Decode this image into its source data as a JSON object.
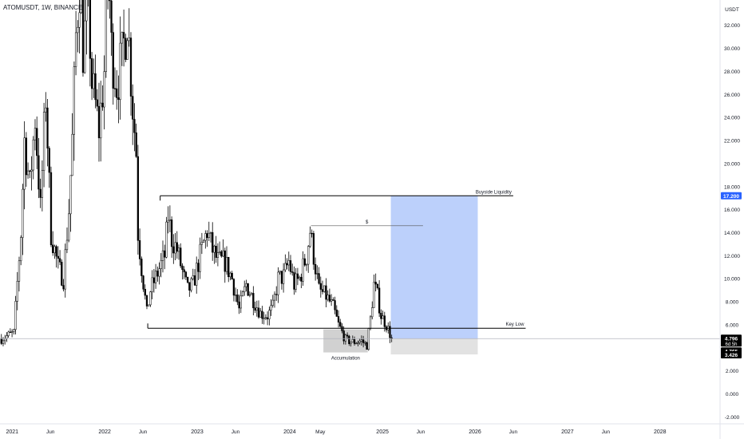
{
  "header": {
    "title": "ATOMUSDT, 1W, BINANCE",
    "currency": "USDT"
  },
  "colors": {
    "candle": "#000000",
    "background": "#ffffff",
    "axis_text": "#131722",
    "target_zone": "#bcd0fb",
    "stop_zone": "#e2e2e2",
    "accumulation_box": "#c6c6c6",
    "price_label": "#000000",
    "highlight_label": "#2962ff",
    "level_line": "#000000",
    "current_price_line": "#b2b5be"
  },
  "chart_data": {
    "type": "candlestick",
    "title": "ATOMUSDT, 1W, BINANCE",
    "ylabel": "USDT",
    "ylim": [
      -2.6,
      34.2
    ],
    "y_ticks": [
      32,
      30,
      28,
      26,
      24,
      22,
      20,
      18,
      16,
      14,
      12,
      10,
      8,
      6,
      2,
      0,
      -2
    ],
    "y_tick_labels": [
      "32.000",
      "30.000",
      "28.000",
      "26.000",
      "24.000",
      "22.000",
      "20.000",
      "18.000",
      "16.000",
      "14.000",
      "12.000",
      "10.000",
      "8.000",
      "6.000",
      "2.000",
      "0.000",
      "-2.000"
    ],
    "xlim": [
      "2020-11-14",
      "2028-08-25"
    ],
    "x_ticks": [
      {
        "date": "2021-01-01",
        "label": "2021"
      },
      {
        "date": "2021-06-01",
        "label": "Jun"
      },
      {
        "date": "2022-01-01",
        "label": "2022"
      },
      {
        "date": "2022-06-01",
        "label": "Jun"
      },
      {
        "date": "2023-01-01",
        "label": "2023"
      },
      {
        "date": "2023-06-01",
        "label": "Jun"
      },
      {
        "date": "2024-01-01",
        "label": "2024"
      },
      {
        "date": "2024-05-01",
        "label": "May"
      },
      {
        "date": "2025-01-01",
        "label": "2025"
      },
      {
        "date": "2025-06-01",
        "label": "Jun"
      },
      {
        "date": "2026-01-01",
        "label": "2026"
      },
      {
        "date": "2026-06-01",
        "label": "Jun"
      },
      {
        "date": "2027-01-01",
        "label": "2027"
      },
      {
        "date": "2027-06-01",
        "label": "Jun"
      },
      {
        "date": "2028-01-01",
        "label": "2028"
      }
    ],
    "first_candle_date": "2020-11-16",
    "close_path": [
      [
        "2020-11-16",
        4.8
      ],
      [
        "2021-01-04",
        5.3
      ],
      [
        "2021-02-01",
        14
      ],
      [
        "2021-02-15",
        22
      ],
      [
        "2021-03-08",
        18
      ],
      [
        "2021-03-29",
        24
      ],
      [
        "2021-04-19",
        16
      ],
      [
        "2021-05-10",
        26
      ],
      [
        "2021-05-31",
        14
      ],
      [
        "2021-06-28",
        11
      ],
      [
        "2021-07-19",
        10
      ],
      [
        "2021-08-09",
        16
      ],
      [
        "2021-08-23",
        22
      ],
      [
        "2021-09-06",
        31
      ],
      [
        "2021-09-20",
        36
      ],
      [
        "2021-10-04",
        30
      ],
      [
        "2021-10-25",
        34
      ],
      [
        "2021-11-08",
        27
      ],
      [
        "2021-12-06",
        23
      ],
      [
        "2021-12-27",
        28
      ],
      [
        "2022-01-10",
        38
      ],
      [
        "2022-01-24",
        30
      ],
      [
        "2022-02-14",
        27
      ],
      [
        "2022-03-07",
        29
      ],
      [
        "2022-03-28",
        33
      ],
      [
        "2022-04-18",
        25
      ],
      [
        "2022-05-02",
        21
      ],
      [
        "2022-05-09",
        14
      ],
      [
        "2022-05-23",
        11
      ],
      [
        "2022-06-13",
        7
      ],
      [
        "2022-06-27",
        9
      ],
      [
        "2022-07-25",
        10.5
      ],
      [
        "2022-08-22",
        12
      ],
      [
        "2022-09-05",
        15.5
      ],
      [
        "2022-09-19",
        13.5
      ],
      [
        "2022-10-10",
        12.5
      ],
      [
        "2022-11-07",
        10
      ],
      [
        "2022-11-21",
        9
      ],
      [
        "2022-12-12",
        9.5
      ],
      [
        "2023-01-09",
        12
      ],
      [
        "2023-02-06",
        14.2
      ],
      [
        "2023-02-27",
        12.5
      ],
      [
        "2023-03-20",
        11.5
      ],
      [
        "2023-04-17",
        11.5
      ],
      [
        "2023-05-15",
        10
      ],
      [
        "2023-06-12",
        7.3
      ],
      [
        "2023-07-10",
        9.5
      ],
      [
        "2023-08-07",
        8.2
      ],
      [
        "2023-09-04",
        7
      ],
      [
        "2023-10-02",
        6.8
      ],
      [
        "2023-10-23",
        7.5
      ],
      [
        "2023-11-13",
        10
      ],
      [
        "2023-12-04",
        10.2
      ],
      [
        "2023-12-25",
        11.5
      ],
      [
        "2024-01-15",
        9.5
      ],
      [
        "2024-02-05",
        10
      ],
      [
        "2024-03-04",
        12
      ],
      [
        "2024-03-18",
        14.2
      ],
      [
        "2024-04-08",
        11
      ],
      [
        "2024-04-22",
        9
      ],
      [
        "2024-05-20",
        8.5
      ],
      [
        "2024-06-17",
        7.5
      ],
      [
        "2024-07-08",
        6
      ],
      [
        "2024-08-05",
        4.7
      ],
      [
        "2024-09-02",
        4.5
      ],
      [
        "2024-10-07",
        4.6
      ],
      [
        "2024-10-28",
        4.2
      ],
      [
        "2024-11-11",
        6.5
      ],
      [
        "2024-11-25",
        9.5
      ],
      [
        "2024-12-09",
        8.5
      ],
      [
        "2024-12-23",
        6.8
      ],
      [
        "2025-01-13",
        6
      ],
      [
        "2025-02-03",
        4.796
      ]
    ],
    "annotations": [
      {
        "type": "level",
        "label": "Buyside Liquidity",
        "y": 17.2,
        "x_start": "2022-08-08",
        "x_end": "2026-06-01"
      },
      {
        "type": "level",
        "label": "Key Low",
        "y": 5.7,
        "x_start": "2022-06-20",
        "x_end": "2026-07-20"
      },
      {
        "type": "level",
        "label": "$",
        "y": 14.6,
        "x_start": "2024-03-25",
        "x_end": "2025-06-10"
      },
      {
        "type": "box",
        "label": "Accumulation",
        "x_start": "2024-05-13",
        "x_end": "2024-11-04",
        "y_low": 3.6,
        "y_high": 5.6
      },
      {
        "type": "target_zone",
        "x_start": "2025-02-03",
        "x_end": "2026-01-12",
        "y_low": 4.796,
        "y_high": 17.2
      },
      {
        "type": "stop_zone",
        "x_start": "2025-02-03",
        "x_end": "2026-01-12",
        "y_low": 3.426,
        "y_high": 4.796
      }
    ],
    "price_labels": [
      {
        "value": 17.2,
        "text": "17.200",
        "style": "highlight"
      },
      {
        "value": 4.796,
        "text": "4.796",
        "sub": "6d 5h",
        "style": "dark"
      },
      {
        "value": 4.765,
        "text": "4.765",
        "style": "dark"
      },
      {
        "value": 3.426,
        "text": "3.426",
        "style": "dark"
      }
    ]
  }
}
